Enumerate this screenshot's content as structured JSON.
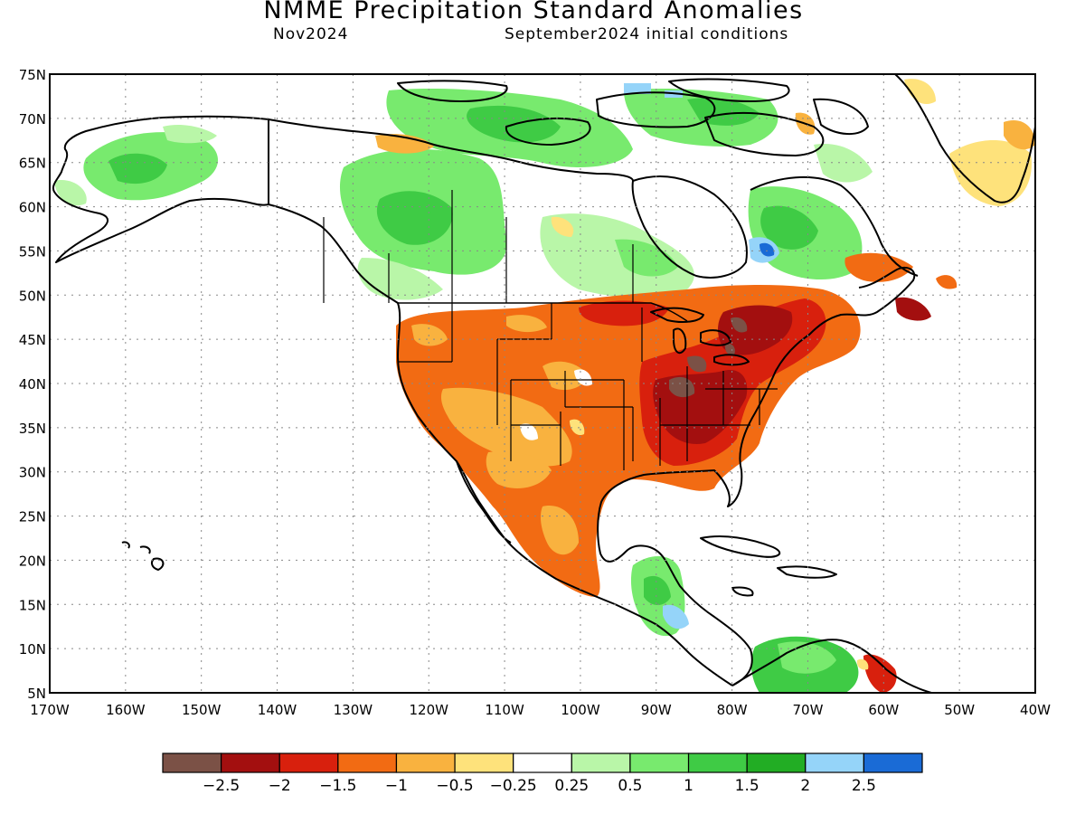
{
  "title": "NMME Precipitation Standard Anomalies",
  "subtitle_left": "Nov2024",
  "subtitle_right": "September2024 initial conditions",
  "lat_labels": [
    "75N",
    "70N",
    "65N",
    "60N",
    "55N",
    "50N",
    "45N",
    "40N",
    "35N",
    "30N",
    "25N",
    "20N",
    "15N",
    "10N",
    "5N"
  ],
  "lon_labels": [
    "170W",
    "160W",
    "150W",
    "140W",
    "130W",
    "120W",
    "110W",
    "100W",
    "90W",
    "80W",
    "70W",
    "60W",
    "50W",
    "40W"
  ],
  "legend": {
    "colors": [
      "#7b5146",
      "#a30f0f",
      "#d8200d",
      "#f26b13",
      "#f9b23f",
      "#fee27b",
      "#ffffff",
      "#b9f6a8",
      "#78ea6e",
      "#3fcb45",
      "#22ad24",
      "#95d4f9",
      "#1a6bd6"
    ],
    "labels": [
      "−2.5",
      "−2",
      "−1.5",
      "−1",
      "−0.5",
      "−0.25",
      "0.25",
      "0.5",
      "1",
      "1.5",
      "2",
      "2.5"
    ]
  },
  "colors": {
    "neg_very_strong": "#7b5146",
    "neg_strong": "#a30f0f",
    "neg_moderate": "#d8200d",
    "neg_mild": "#f26b13",
    "neg_weak": "#f9b23f",
    "neg_slight": "#fee27b",
    "pos_slight": "#b9f6a8",
    "pos_weak": "#78ea6e",
    "pos_mild": "#3fcb45",
    "pos_moderate": "#22ad24",
    "pos_strong": "#95d4f9",
    "pos_very_strong": "#1a6bd6"
  }
}
